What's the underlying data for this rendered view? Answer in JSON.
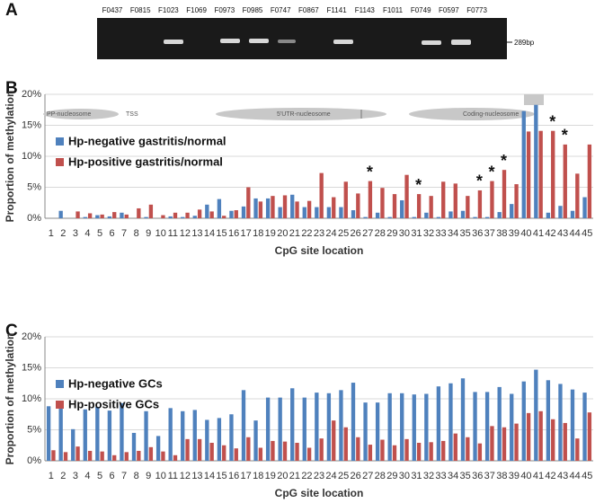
{
  "gel": {
    "panel": "A",
    "lanes": [
      "F0437",
      "F0815",
      "F1023",
      "F1069",
      "F0973",
      "F0985",
      "F0747",
      "F0867",
      "F1141",
      "F1143",
      "F1011",
      "F0749",
      "F0597",
      "F0773"
    ],
    "marker": "289bp"
  },
  "chart_data": [
    {
      "type": "bar",
      "panel": "B",
      "xlabel": "CpG site location",
      "ylabel": "Proportion of methylation",
      "track_labels": [
        "PP-nucleosome",
        "TSS",
        "5'UTR-nucleosome",
        "Coding-nucleosome"
      ],
      "categories": [
        "1",
        "2",
        "3",
        "4",
        "5",
        "6",
        "7",
        "8",
        "9",
        "10",
        "11",
        "12",
        "13",
        "14",
        "15",
        "16",
        "17",
        "18",
        "19",
        "20",
        "21",
        "22",
        "23",
        "24",
        "25",
        "26",
        "27",
        "28",
        "29",
        "30",
        "31",
        "32",
        "33",
        "34",
        "35",
        "36",
        "37",
        "38",
        "39",
        "40",
        "41",
        "42",
        "43",
        "44",
        "45"
      ],
      "series": [
        {
          "name": "Hp-negative gastritis/normal",
          "color": "#4f81bd",
          "values": [
            0,
            1.2,
            0,
            0.2,
            0.5,
            0.3,
            0.9,
            0,
            0.2,
            0,
            0.3,
            0.2,
            0.4,
            2.2,
            3.1,
            1.2,
            1.9,
            3.2,
            3.2,
            1.8,
            3.8,
            1.8,
            1.8,
            1.8,
            1.8,
            1.3,
            0.2,
            0.9,
            0.2,
            2.9,
            0.2,
            0.9,
            0.2,
            1.1,
            1.2,
            0.2,
            0.2,
            1.0,
            2.3,
            17.3,
            18.3,
            0.9,
            2.0,
            1.2,
            3.4
          ]
        },
        {
          "name": "Hp-positive gastritis/normal",
          "color": "#c0504d",
          "values": [
            0,
            0,
            1.1,
            0.8,
            0.6,
            1.0,
            0.6,
            1.6,
            2.2,
            0.5,
            0.9,
            0.9,
            1.4,
            1.1,
            0.4,
            1.3,
            5.0,
            2.7,
            3.6,
            3.7,
            2.7,
            2.8,
            7.3,
            3.4,
            5.9,
            4.0,
            6.0,
            4.9,
            3.9,
            7.0,
            3.9,
            3.6,
            5.9,
            5.6,
            3.6,
            4.5,
            6.0,
            7.8,
            5.5,
            14.0,
            14.1,
            14.1,
            11.9,
            7.2,
            11.9
          ]
        }
      ],
      "annotations": [
        {
          "category": "27",
          "text": "*"
        },
        {
          "category": "31",
          "text": "*"
        },
        {
          "category": "36",
          "text": "*"
        },
        {
          "category": "37",
          "text": "*"
        },
        {
          "category": "38",
          "text": "*"
        },
        {
          "category": "42",
          "text": "*"
        },
        {
          "category": "43",
          "text": "*"
        }
      ],
      "ylim": [
        0,
        20
      ],
      "yticks": [
        {
          "value": 0,
          "label": "0%"
        },
        {
          "value": 5,
          "label": "5%"
        },
        {
          "value": 10,
          "label": "10%"
        },
        {
          "value": 15,
          "label": "15%"
        },
        {
          "value": 20,
          "label": "20%"
        }
      ],
      "grid": true
    },
    {
      "type": "bar",
      "panel": "C",
      "xlabel": "CpG site location",
      "ylabel": "Proportion of methylation",
      "categories": [
        "1",
        "2",
        "3",
        "4",
        "5",
        "6",
        "7",
        "8",
        "9",
        "10",
        "11",
        "12",
        "13",
        "14",
        "15",
        "16",
        "17",
        "18",
        "19",
        "20",
        "21",
        "22",
        "23",
        "24",
        "25",
        "26",
        "27",
        "28",
        "29",
        "30",
        "31",
        "32",
        "33",
        "34",
        "35",
        "36",
        "37",
        "38",
        "39",
        "40",
        "41",
        "42",
        "43",
        "44",
        "45"
      ],
      "series": [
        {
          "name": "Hp-negative GCs",
          "color": "#4f81bd",
          "values": [
            8.8,
            9.0,
            5.1,
            8.3,
            8.7,
            8.1,
            9.3,
            4.5,
            8.0,
            4.0,
            8.5,
            8.0,
            8.2,
            6.6,
            6.9,
            7.5,
            11.4,
            6.5,
            10.2,
            10.2,
            11.7,
            10.2,
            11.0,
            10.9,
            11.4,
            12.6,
            9.4,
            9.4,
            10.9,
            10.9,
            10.7,
            10.8,
            12.0,
            12.5,
            13.3,
            11.1,
            11.1,
            11.9,
            10.8,
            12.8,
            14.7,
            13.0,
            12.4,
            11.5,
            11.0
          ]
        },
        {
          "name": "Hp-positive GCs",
          "color": "#c0504d",
          "values": [
            1.7,
            1.4,
            2.3,
            1.6,
            1.5,
            0.9,
            1.4,
            1.6,
            2.2,
            1.5,
            0.9,
            3.5,
            3.5,
            2.9,
            2.5,
            2.0,
            3.8,
            2.1,
            3.2,
            3.1,
            2.9,
            2.1,
            3.6,
            6.5,
            5.4,
            3.8,
            2.6,
            3.4,
            2.5,
            3.5,
            2.9,
            3.0,
            3.2,
            4.4,
            3.8,
            2.8,
            5.6,
            5.4,
            6.0,
            7.7,
            8.0,
            6.7,
            6.1,
            3.6,
            7.8
          ]
        }
      ],
      "ylim": [
        0,
        20
      ],
      "yticks": [
        {
          "value": 0,
          "label": "0%"
        },
        {
          "value": 5,
          "label": "5%"
        },
        {
          "value": 10,
          "label": "10%"
        },
        {
          "value": 15,
          "label": "15%"
        },
        {
          "value": 20,
          "label": "20%"
        }
      ],
      "grid": true
    }
  ]
}
